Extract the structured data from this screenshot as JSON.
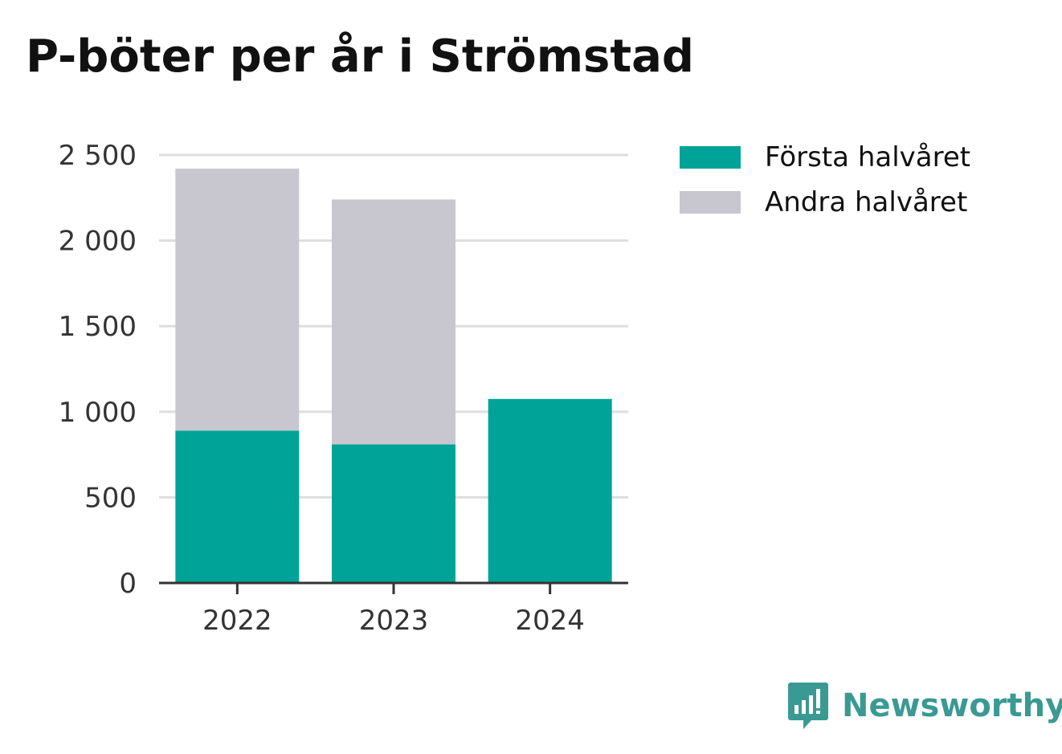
{
  "title": "P-böter per år i Strömstad",
  "colors": {
    "first_half": "#00a398",
    "second_half": "#c8c7cf",
    "brand": "#3a9a93"
  },
  "legend": [
    {
      "label": "Första halvåret",
      "color": "#00a398"
    },
    {
      "label": "Andra halvåret",
      "color": "#c8c7cf"
    }
  ],
  "brand": {
    "name": "Newsworthy",
    "icon": "bar-chart-speech-bubble-icon"
  },
  "chart_data": {
    "type": "bar",
    "stacked": true,
    "categories": [
      "2022",
      "2023",
      "2024"
    ],
    "series": [
      {
        "name": "Första halvåret",
        "values": [
          890,
          810,
          1075
        ]
      },
      {
        "name": "Andra halvåret",
        "values": [
          1530,
          1430,
          0
        ]
      }
    ],
    "title": "P-böter per år i Strömstad",
    "xlabel": "",
    "ylabel": "",
    "ylim": [
      0,
      2500
    ],
    "yticks": [
      0,
      500,
      1000,
      1500,
      2000,
      2500
    ],
    "ytick_labels": [
      "0",
      "500",
      "1 000",
      "1 500",
      "2 000",
      "2 500"
    ],
    "grid": true,
    "legend_position": "top-right"
  }
}
